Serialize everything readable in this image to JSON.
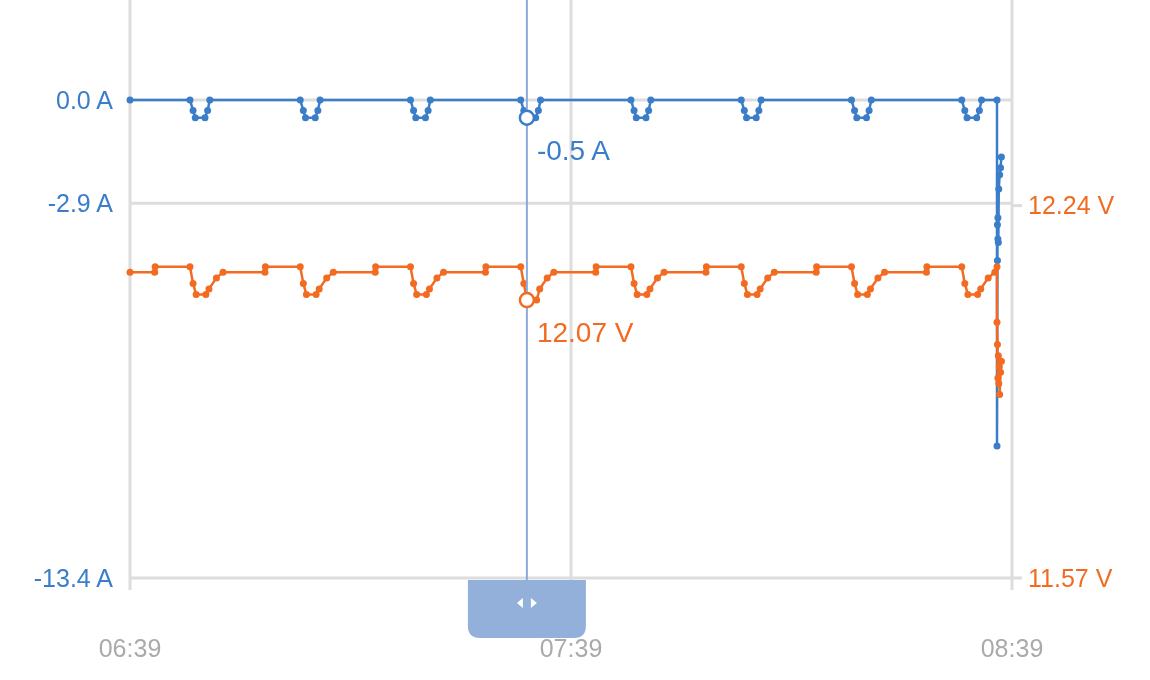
{
  "chart_data": {
    "type": "line",
    "xlim": [
      6.65,
      8.65
    ],
    "xticks": [
      {
        "value": 6.65,
        "label": "06:39"
      },
      {
        "value": 7.65,
        "label": "07:39"
      },
      {
        "value": 8.65,
        "label": "08:39"
      }
    ],
    "ylim": [
      -13.4,
      2.8
    ],
    "yticks": [
      {
        "value": 0,
        "label": "0.0 A"
      },
      {
        "value": -2.9,
        "label": "-2.9 A"
      },
      {
        "value": -13.4,
        "label": "-13.4 A"
      }
    ],
    "y2lim": [
      11.57,
      12.61
    ],
    "y2ticks": [
      {
        "value": 12.24,
        "label": "12.24 V"
      },
      {
        "value": 11.57,
        "label": "11.57 V"
      }
    ],
    "grid": true,
    "marker": "circle",
    "line_style": "solid",
    "series": [
      {
        "color": "#3a7dc9",
        "x": [
          6.65,
          6.786,
          6.793,
          6.798,
          6.82,
          6.826,
          6.831,
          7.036,
          7.043,
          7.048,
          7.07,
          7.076,
          7.081,
          7.286,
          7.293,
          7.298,
          7.32,
          7.326,
          7.331,
          7.536,
          7.543,
          7.548,
          7.57,
          7.576,
          7.581,
          7.786,
          7.793,
          7.798,
          7.82,
          7.826,
          7.831,
          8.036,
          8.043,
          8.048,
          8.07,
          8.076,
          8.081,
          8.286,
          8.293,
          8.298,
          8.32,
          8.326,
          8.331,
          8.536,
          8.543,
          8.548,
          8.57,
          8.576,
          8.581,
          8.616,
          8.616,
          8.617,
          8.617,
          8.618,
          8.618,
          8.619,
          8.62,
          8.622,
          8.624,
          8.626
        ],
        "values": [
          0,
          0,
          -0.3,
          -0.5,
          -0.5,
          -0.3,
          0,
          0,
          -0.3,
          -0.5,
          -0.5,
          -0.3,
          0,
          0,
          -0.3,
          -0.5,
          -0.5,
          -0.3,
          0,
          0,
          -0.3,
          -0.5,
          -0.5,
          -0.3,
          0,
          0,
          -0.3,
          -0.5,
          -0.5,
          -0.3,
          0,
          0,
          -0.3,
          -0.5,
          -0.5,
          -0.3,
          0,
          0,
          -0.3,
          -0.5,
          -0.5,
          -0.3,
          0,
          0,
          -0.3,
          -0.5,
          -0.5,
          -0.3,
          0,
          0,
          -9.7,
          -4.5,
          -3.5,
          -3.9,
          -3.3,
          -4.0,
          -2.5,
          -2.1,
          -1.9,
          -1.6
        ]
      },
      {
        "color": "#f26b21",
        "axis": "y2",
        "x": [
          6.65,
          6.706,
          6.707,
          6.786,
          6.793,
          6.8,
          6.822,
          6.829,
          6.846,
          6.861,
          6.956,
          6.957,
          7.036,
          7.043,
          7.05,
          7.072,
          7.079,
          7.096,
          7.111,
          7.206,
          7.207,
          7.286,
          7.293,
          7.3,
          7.322,
          7.329,
          7.346,
          7.361,
          7.456,
          7.457,
          7.536,
          7.543,
          7.55,
          7.572,
          7.579,
          7.596,
          7.611,
          7.706,
          7.707,
          7.786,
          7.793,
          7.8,
          7.822,
          7.829,
          7.846,
          7.861,
          7.956,
          7.957,
          8.036,
          8.043,
          8.05,
          8.072,
          8.079,
          8.096,
          8.111,
          8.206,
          8.207,
          8.286,
          8.293,
          8.3,
          8.322,
          8.329,
          8.346,
          8.361,
          8.456,
          8.457,
          8.536,
          8.543,
          8.55,
          8.572,
          8.579,
          8.596,
          8.611,
          8.616,
          8.616,
          8.617,
          8.618,
          8.619,
          8.62,
          8.621,
          8.622,
          8.624,
          8.626
        ],
        "values": [
          12.12,
          12.12,
          12.13,
          12.13,
          12.1,
          12.08,
          12.08,
          12.09,
          12.11,
          12.12,
          12.12,
          12.13,
          12.13,
          12.1,
          12.08,
          12.08,
          12.09,
          12.11,
          12.12,
          12.12,
          12.13,
          12.13,
          12.1,
          12.08,
          12.08,
          12.09,
          12.11,
          12.12,
          12.12,
          12.13,
          12.13,
          12.1,
          12.07,
          12.07,
          12.09,
          12.11,
          12.12,
          12.12,
          12.13,
          12.13,
          12.1,
          12.08,
          12.08,
          12.09,
          12.11,
          12.12,
          12.12,
          12.13,
          12.13,
          12.1,
          12.08,
          12.08,
          12.09,
          12.11,
          12.12,
          12.12,
          12.13,
          12.13,
          12.1,
          12.08,
          12.08,
          12.09,
          12.11,
          12.12,
          12.12,
          12.13,
          12.13,
          12.1,
          12.08,
          12.08,
          12.09,
          12.11,
          12.12,
          12.13,
          12.03,
          11.99,
          11.93,
          11.97,
          11.92,
          11.95,
          11.9,
          11.94,
          11.96
        ]
      }
    ],
    "ref_lines": [
      {
        "axis": "x",
        "value": 7.55,
        "color": "#8eaadb"
      }
    ],
    "annotations": [
      "-0.5 A",
      "12.07 V"
    ]
  }
}
